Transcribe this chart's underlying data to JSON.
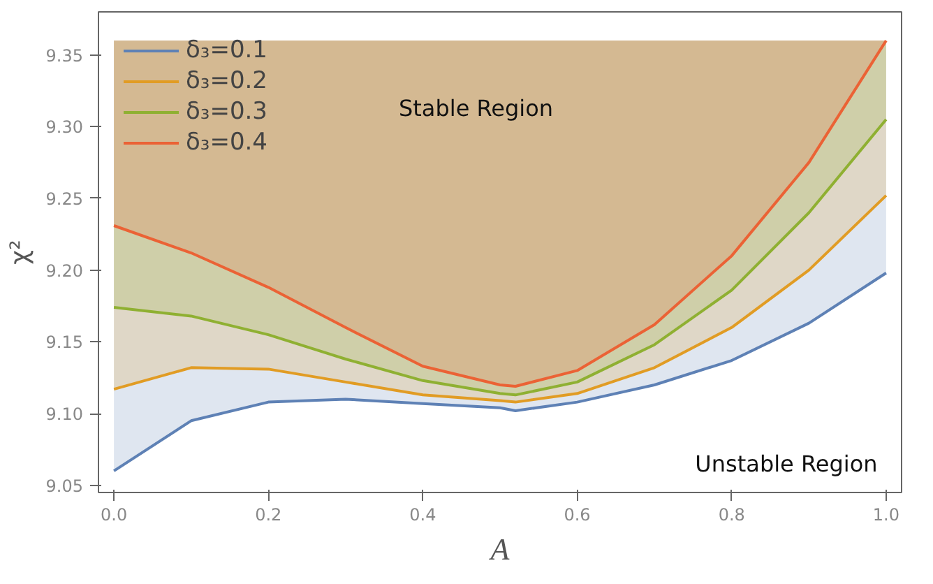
{
  "chart_data": {
    "type": "line",
    "xlabel": "A",
    "ylabel": "χ²",
    "x": [
      0,
      0.1,
      0.2,
      0.3,
      0.4,
      0.5,
      0.52,
      0.6,
      0.7,
      0.8,
      0.9,
      1.0
    ],
    "series": [
      {
        "name": "δ₃=0.1",
        "color": "#5e81b5",
        "values": [
          9.06,
          9.095,
          9.108,
          9.11,
          9.107,
          9.104,
          9.102,
          9.108,
          9.12,
          9.137,
          9.163,
          9.198
        ],
        "lower": [
          9.06,
          9.095,
          9.108,
          9.11,
          9.107,
          9.104,
          9.102,
          9.108,
          9.12,
          9.137,
          9.163,
          9.198
        ],
        "upper": [
          9.36,
          9.36,
          9.36,
          9.36,
          9.36,
          9.36,
          9.36,
          9.36,
          9.36,
          9.36,
          9.36,
          9.36
        ]
      },
      {
        "name": "δ₃=0.2",
        "color": "#e19c24",
        "values": [
          9.117,
          9.132,
          9.131,
          9.122,
          9.113,
          9.109,
          9.108,
          9.114,
          9.132,
          9.16,
          9.2,
          9.252
        ],
        "lower": [
          9.117,
          9.132,
          9.131,
          9.122,
          9.113,
          9.109,
          9.108,
          9.114,
          9.132,
          9.16,
          9.2,
          9.252
        ],
        "upper": [
          9.36,
          9.36,
          9.36,
          9.36,
          9.36,
          9.36,
          9.36,
          9.36,
          9.36,
          9.36,
          9.36,
          9.36
        ]
      },
      {
        "name": "δ₃=0.3",
        "color": "#8fb032",
        "values": [
          9.174,
          9.168,
          9.155,
          9.138,
          9.123,
          9.114,
          9.113,
          9.122,
          9.148,
          9.186,
          9.24,
          9.305
        ],
        "lower": [
          9.174,
          9.168,
          9.155,
          9.138,
          9.123,
          9.114,
          9.113,
          9.122,
          9.148,
          9.186,
          9.24,
          9.305
        ],
        "upper": [
          9.36,
          9.36,
          9.36,
          9.36,
          9.36,
          9.36,
          9.36,
          9.36,
          9.36,
          9.36,
          9.36,
          9.36
        ]
      },
      {
        "name": "δ₃=0.4",
        "color": "#eb6235",
        "values": [
          9.231,
          9.212,
          9.188,
          9.16,
          9.133,
          9.12,
          9.119,
          9.13,
          9.162,
          9.21,
          9.275,
          9.36
        ],
        "lower": [
          9.231,
          9.212,
          9.188,
          9.16,
          9.133,
          9.12,
          9.119,
          9.13,
          9.162,
          9.21,
          9.275,
          9.36
        ],
        "upper": [
          9.36,
          9.36,
          9.36,
          9.36,
          9.36,
          9.36,
          9.36,
          9.36,
          9.36,
          9.36,
          9.36,
          9.36
        ]
      }
    ],
    "annotations": [
      "Stable Region",
      "Unstable Region"
    ],
    "xlim": [
      -0.02,
      1.02
    ],
    "ylim": [
      9.045,
      9.38
    ],
    "xticks": [
      {
        "value": 0,
        "label": "0.0"
      },
      0.2,
      0.4,
      0.6,
      0.8,
      {
        "value": 1,
        "label": "1.0"
      }
    ],
    "yticks": [
      {
        "value": 9.05,
        "label": "9.05"
      },
      {
        "value": 9.1,
        "label": "9.10"
      },
      {
        "value": 9.15,
        "label": "9.15"
      },
      {
        "value": 9.2,
        "label": "9.20"
      },
      {
        "value": 9.25,
        "label": "9.25"
      },
      {
        "value": 9.3,
        "label": "9.30"
      },
      {
        "value": 9.35,
        "label": "9.35"
      }
    ],
    "grid": false,
    "legend": "top left",
    "line_style": "solid",
    "marker": "none"
  }
}
